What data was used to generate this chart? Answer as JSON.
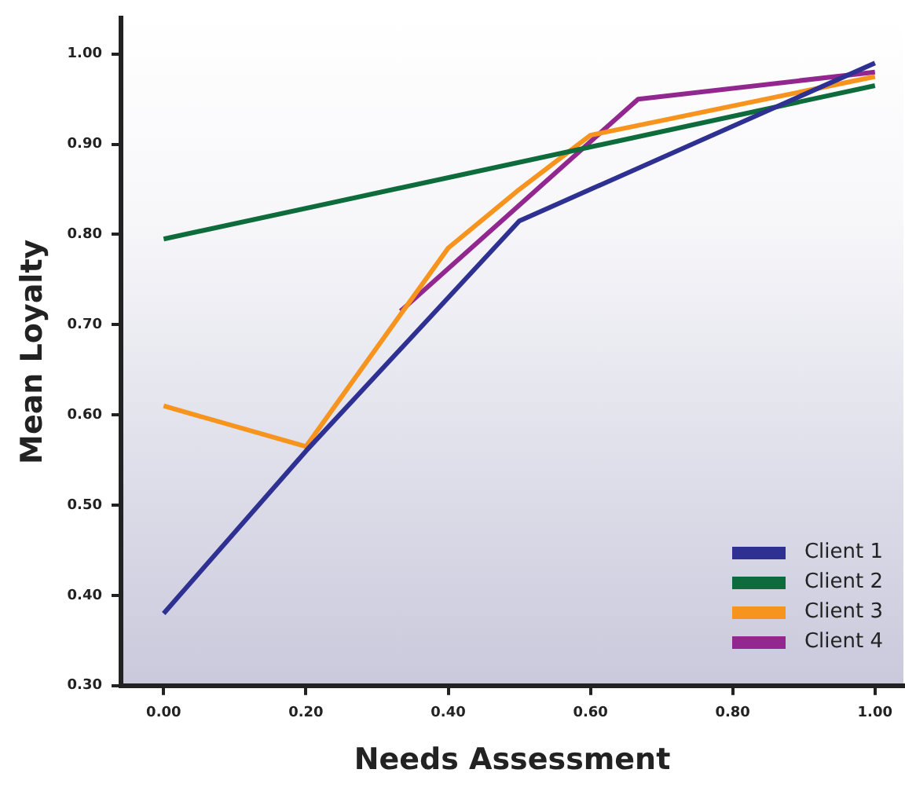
{
  "chart_data": {
    "type": "line",
    "xlabel": "Needs Assessment",
    "ylabel": "Mean Loyalty",
    "xlim": [
      -0.06,
      1.04
    ],
    "ylim": [
      0.3,
      1.04
    ],
    "xticks": [
      {
        "value": 0,
        "label": "0.00"
      },
      {
        "value": 0.2,
        "label": "0.20"
      },
      {
        "value": 0.4,
        "label": "0.40"
      },
      {
        "value": 0.6,
        "label": "0.60"
      },
      {
        "value": 0.8,
        "label": "0.80"
      },
      {
        "value": 1,
        "label": "1.00"
      }
    ],
    "yticks": [
      {
        "value": 0.3,
        "label": "0.30"
      },
      {
        "value": 0.4,
        "label": "0.40"
      },
      {
        "value": 0.5,
        "label": "0.50"
      },
      {
        "value": 0.6,
        "label": "0.60"
      },
      {
        "value": 0.7,
        "label": "0.70"
      },
      {
        "value": 0.8,
        "label": "0.80"
      },
      {
        "value": 0.9,
        "label": "0.90"
      },
      {
        "value": 1,
        "label": "1.00"
      }
    ],
    "grid": false,
    "legend": "bottom right",
    "marker": "none",
    "line_style": "solid",
    "series": [
      {
        "name": "Client 1",
        "color": "#2e3192",
        "x": [
          0,
          0.2,
          0.5,
          0.6,
          1
        ],
        "values": [
          0.38,
          0.56,
          0.815,
          0.85,
          0.99
        ]
      },
      {
        "name": "Client 2",
        "color": "#0d6b3c",
        "x": [
          0,
          1
        ],
        "values": [
          0.795,
          0.965
        ]
      },
      {
        "name": "Client 3",
        "color": "#f7941d",
        "x": [
          0,
          0.2,
          0.4,
          0.5,
          0.6,
          1
        ],
        "values": [
          0.61,
          0.565,
          0.785,
          0.85,
          0.91,
          0.975
        ]
      },
      {
        "name": "Client 4",
        "color": "#92278f",
        "x": [
          0.333,
          0.667,
          1
        ],
        "values": [
          0.715,
          0.95,
          0.98
        ]
      }
    ]
  }
}
